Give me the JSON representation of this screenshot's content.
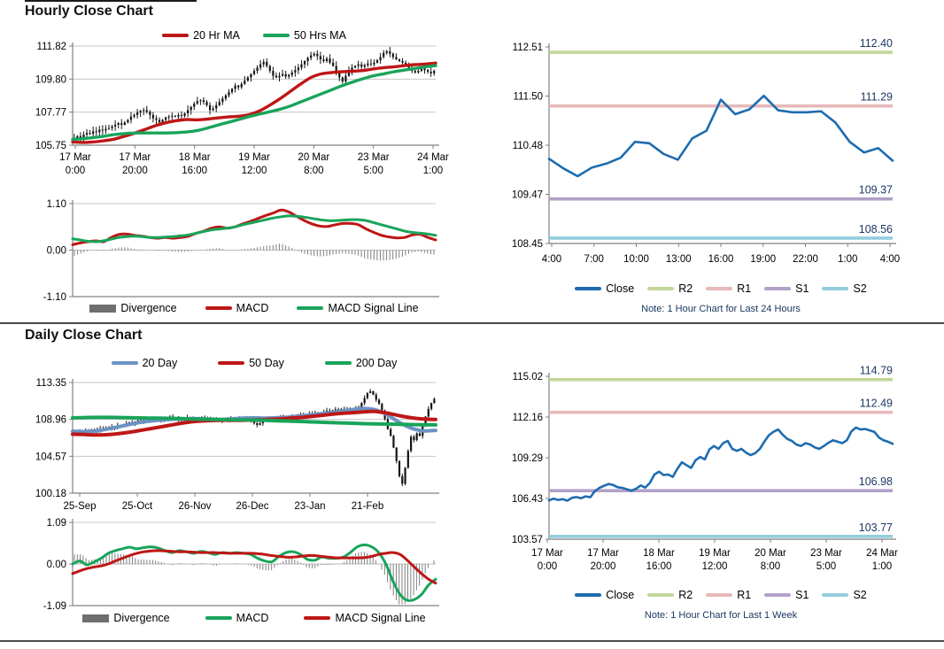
{
  "sections": {
    "hourly": {
      "title": "Hourly Close Chart"
    },
    "daily": {
      "title": "Daily Close Chart"
    }
  },
  "colors": {
    "ma_red": "#BE1616",
    "ma_green": "#18A45A",
    "ma_blue": "#6C92C4",
    "close_blue": "#1E6CB0",
    "r2_olive": "#C3D69B",
    "r1_pink": "#E6B9B8",
    "s1_purple": "#B2A1C7",
    "s2_cyan": "#93CDDD",
    "divergence_gray": "#6E6E6E",
    "candle_black": "#141414",
    "grid_gray": "#C6C6C6",
    "axis_gray": "#808080",
    "level_label_navy": "#1F3864",
    "note_navy": "#17365D"
  },
  "chart_data": [
    {
      "id": "hourly-price",
      "type": "candlestick",
      "title": "Hourly Close Chart",
      "ylim": [
        105.75,
        111.82
      ],
      "y_ticks": [
        "111.82",
        "109.80",
        "107.77",
        "105.75"
      ],
      "x_labels": [
        [
          "17 Mar",
          "0:00"
        ],
        [
          "17 Mar",
          "20:00"
        ],
        [
          "18 Mar",
          "16:00"
        ],
        [
          "19 Mar",
          "12:00"
        ],
        [
          "20 Mar",
          "8:00"
        ],
        [
          "23 Mar",
          "5:00"
        ],
        [
          "24 Mar",
          "1:00"
        ]
      ],
      "grid": true,
      "legend": [
        {
          "label": "20 Hr MA",
          "color": "#BE1616",
          "shape": "line"
        },
        {
          "label": "50 Hrs MA",
          "color": "#18A45A",
          "shape": "line"
        }
      ],
      "close": [
        106.2,
        106.3,
        106.15,
        106.4,
        106.5,
        106.45,
        106.6,
        106.55,
        106.7,
        106.65,
        106.75,
        106.8,
        106.9,
        107.0,
        107.1,
        107.0,
        107.15,
        107.3,
        107.5,
        107.6,
        107.75,
        107.85,
        107.9,
        107.8,
        107.6,
        107.4,
        107.3,
        107.15,
        107.3,
        107.45,
        107.5,
        107.55,
        107.5,
        107.6,
        107.55,
        107.7,
        107.9,
        108.1,
        108.3,
        108.45,
        108.5,
        108.4,
        108.2,
        107.9,
        108.0,
        108.2,
        108.4,
        108.6,
        108.8,
        109.0,
        109.2,
        109.4,
        109.3,
        109.5,
        109.7,
        109.9,
        110.1,
        110.3,
        110.5,
        110.7,
        110.85,
        110.6,
        110.3,
        110.0,
        109.9,
        110.0,
        110.1,
        109.95,
        110.05,
        110.2,
        110.35,
        110.5,
        110.7,
        110.9,
        111.1,
        111.25,
        111.35,
        111.2,
        111.0,
        110.9,
        111.05,
        110.8,
        110.6,
        110.2,
        109.9,
        109.65,
        110.0,
        110.3,
        110.5,
        110.6,
        110.7,
        110.55,
        110.65,
        110.75,
        110.7,
        110.8,
        110.95,
        111.15,
        111.4,
        111.5,
        111.35,
        111.15,
        111.0,
        110.9,
        110.8,
        110.7,
        110.5,
        110.3,
        110.2,
        110.3,
        110.45,
        110.35,
        110.25,
        110.15,
        110.3
      ],
      "ma_series": [
        {
          "name": "20 Hr MA",
          "color": "#BE1616",
          "points": [
            105.95,
            105.92,
            105.95,
            106.02,
            106.12,
            106.3,
            106.5,
            106.72,
            106.95,
            107.12,
            107.25,
            107.32,
            107.3,
            107.35,
            107.42,
            107.48,
            107.52,
            107.62,
            107.85,
            108.2,
            108.6,
            109.05,
            109.5,
            109.9,
            110.12,
            110.2,
            110.25,
            110.28,
            110.32,
            110.42,
            110.5,
            110.55,
            110.62,
            110.68,
            110.72,
            110.78
          ]
        },
        {
          "name": "50 Hrs MA",
          "color": "#18A45A",
          "points": [
            106.1,
            106.15,
            106.22,
            106.3,
            106.4,
            106.46,
            106.5,
            106.5,
            106.5,
            106.5,
            106.52,
            106.56,
            106.65,
            106.8,
            106.98,
            107.15,
            107.32,
            107.5,
            107.65,
            107.8,
            107.95,
            108.15,
            108.4,
            108.65,
            108.9,
            109.15,
            109.4,
            109.62,
            109.82,
            110.0,
            110.12,
            110.25,
            110.35,
            110.45,
            110.55,
            110.62
          ]
        }
      ]
    },
    {
      "id": "hourly-macd",
      "type": "macd",
      "ylim": [
        -1.1,
        1.1
      ],
      "y_ticks": [
        "1.10",
        "0.00",
        "-1.10"
      ],
      "legend": [
        {
          "label": "Divergence",
          "color": "#6E6E6E",
          "shape": "bar"
        },
        {
          "label": "MACD",
          "color": "#BE1616",
          "shape": "line"
        },
        {
          "label": "MACD Signal Line",
          "color": "#18A45A",
          "shape": "line"
        }
      ],
      "macd_color": "#BE1616",
      "signal_color": "#18A45A",
      "macd": [
        0.13,
        0.17,
        0.2,
        0.22,
        0.2,
        0.3,
        0.37,
        0.38,
        0.35,
        0.33,
        0.3,
        0.28,
        0.3,
        0.28,
        0.3,
        0.33,
        0.4,
        0.45,
        0.52,
        0.55,
        0.52,
        0.55,
        0.62,
        0.68,
        0.75,
        0.82,
        0.88,
        0.95,
        0.9,
        0.8,
        0.7,
        0.62,
        0.57,
        0.56,
        0.6,
        0.63,
        0.63,
        0.6,
        0.5,
        0.42,
        0.35,
        0.31,
        0.29,
        0.3,
        0.36,
        0.37,
        0.3,
        0.24
      ],
      "signal": [
        0.27,
        0.24,
        0.21,
        0.2,
        0.22,
        0.26,
        0.3,
        0.32,
        0.33,
        0.32,
        0.3,
        0.3,
        0.31,
        0.32,
        0.34,
        0.36,
        0.4,
        0.44,
        0.48,
        0.5,
        0.52,
        0.55,
        0.6,
        0.64,
        0.68,
        0.72,
        0.76,
        0.79,
        0.81,
        0.8,
        0.78,
        0.75,
        0.72,
        0.7,
        0.7,
        0.71,
        0.72,
        0.72,
        0.7,
        0.65,
        0.6,
        0.55,
        0.5,
        0.45,
        0.42,
        0.4,
        0.38,
        0.35
      ]
    },
    {
      "id": "pivot-24h",
      "type": "pivot",
      "ylim": [
        108.45,
        112.51
      ],
      "y_ticks": [
        "112.51",
        "111.50",
        "110.48",
        "109.47",
        "108.45"
      ],
      "x_labels": [
        "4:00",
        "7:00",
        "10:00",
        "13:00",
        "16:00",
        "19:00",
        "22:00",
        "1:00",
        "4:00"
      ],
      "levels": [
        {
          "name": "R2",
          "value": 112.4,
          "label": "112.40",
          "color": "#C3D69B"
        },
        {
          "name": "R1",
          "value": 111.29,
          "label": "111.29",
          "color": "#E6B9B8"
        },
        {
          "name": "S1",
          "value": 109.37,
          "label": "109.37",
          "color": "#B2A1C7"
        },
        {
          "name": "S2",
          "value": 108.56,
          "label": "108.56",
          "color": "#93CDDD"
        }
      ],
      "close": [
        110.2,
        110.0,
        109.84,
        110.02,
        110.1,
        110.22,
        110.55,
        110.52,
        110.3,
        110.18,
        110.62,
        110.78,
        111.42,
        111.12,
        111.22,
        111.5,
        111.2,
        111.16,
        111.16,
        111.18,
        110.95,
        110.55,
        110.33,
        110.42,
        110.16
      ],
      "legend": [
        {
          "label": "Close",
          "color": "#1E6CB0",
          "shape": "line"
        },
        {
          "label": "R2",
          "color": "#C3D69B",
          "shape": "line"
        },
        {
          "label": "R1",
          "color": "#E6B9B8",
          "shape": "line"
        },
        {
          "label": "S1",
          "color": "#B2A1C7",
          "shape": "line"
        },
        {
          "label": "S2",
          "color": "#93CDDD",
          "shape": "line"
        }
      ],
      "note": "Note: 1 Hour Chart for Last 24 Hours"
    },
    {
      "id": "daily-price",
      "type": "candlestick",
      "title": "Daily Close Chart",
      "ylim": [
        100.18,
        113.35
      ],
      "y_ticks": [
        "113.35",
        "108.96",
        "104.57",
        "100.18"
      ],
      "x_labels": [
        [
          "25-Sep"
        ],
        [
          "25-Oct"
        ],
        [
          "26-Nov"
        ],
        [
          "26-Dec"
        ],
        [
          "23-Jan"
        ],
        [
          "21-Feb"
        ]
      ],
      "grid": true,
      "legend": [
        {
          "label": "20 Day",
          "color": "#6C92C4",
          "shape": "line"
        },
        {
          "label": "50 Day",
          "color": "#BE1616",
          "shape": "line"
        },
        {
          "label": "200 Day",
          "color": "#18A45A",
          "shape": "line"
        }
      ],
      "close": [
        107.35,
        107.5,
        107.3,
        107.45,
        107.6,
        107.5,
        107.4,
        107.55,
        107.7,
        107.85,
        107.75,
        107.9,
        108.05,
        107.95,
        108.1,
        108.25,
        108.15,
        108.3,
        108.45,
        108.6,
        108.5,
        108.7,
        108.85,
        108.75,
        108.9,
        109.05,
        108.95,
        109.1,
        109.2,
        109.05,
        108.9,
        109.0,
        109.15,
        109.3,
        109.15,
        109.0,
        108.85,
        109.0,
        109.1,
        109.2,
        109.1,
        109.0,
        108.9,
        109.05,
        109.15,
        109.05,
        108.95,
        109.1,
        109.0,
        108.9,
        108.8,
        108.95,
        109.1,
        109.0,
        108.9,
        109.05,
        109.15,
        109.05,
        108.95,
        109.05,
        108.9,
        108.7,
        108.5,
        108.3,
        108.5,
        108.7,
        108.9,
        109.1,
        109.0,
        108.9,
        109.05,
        109.2,
        109.1,
        109.0,
        109.15,
        109.3,
        109.2,
        109.35,
        109.45,
        109.35,
        109.5,
        109.6,
        109.5,
        109.65,
        109.8,
        109.7,
        109.85,
        110.0,
        109.9,
        110.05,
        110.15,
        110.05,
        110.2,
        110.1,
        110.0,
        110.15,
        110.25,
        110.15,
        110.4,
        110.9,
        111.5,
        112.1,
        112.3,
        111.9,
        111.3,
        110.8,
        110.0,
        109.0,
        107.8,
        107.0,
        105.6,
        104.0,
        102.2,
        101.3,
        103.2,
        105.2,
        106.9,
        106.5,
        107.3,
        107.0,
        108.2,
        109.3,
        110.2,
        110.9,
        111.4
      ],
      "ma_series": [
        {
          "name": "20 Day",
          "color": "#6C92C4",
          "points": [
            107.55,
            107.5,
            107.6,
            107.85,
            108.15,
            108.45,
            108.7,
            108.85,
            108.95,
            109.0,
            109.05,
            109.0,
            108.95,
            109.0,
            109.1,
            109.15,
            109.1,
            109.15,
            109.25,
            109.4,
            109.55,
            109.7,
            109.9,
            110.1,
            110.25,
            110.1,
            109.5,
            108.6,
            107.9,
            107.6,
            107.65
          ]
        },
        {
          "name": "50 Day",
          "color": "#BE1616",
          "points": [
            107.2,
            107.15,
            107.1,
            107.15,
            107.3,
            107.5,
            107.75,
            108.0,
            108.25,
            108.5,
            108.7,
            108.8,
            108.85,
            108.85,
            108.85,
            108.9,
            108.95,
            109.0,
            109.1,
            109.2,
            109.35,
            109.5,
            109.65,
            109.75,
            109.85,
            109.9,
            109.7,
            109.4,
            109.15,
            109.0,
            108.95
          ]
        },
        {
          "name": "200 Day",
          "color": "#18A45A",
          "points": [
            109.15,
            109.18,
            109.2,
            109.2,
            109.18,
            109.15,
            109.12,
            109.1,
            109.08,
            109.05,
            109.0,
            108.98,
            108.95,
            108.92,
            108.9,
            108.88,
            108.85,
            108.8,
            108.75,
            108.7,
            108.65,
            108.6,
            108.55,
            108.5,
            108.45,
            108.42,
            108.4,
            108.38,
            108.35,
            108.32,
            108.3
          ]
        }
      ]
    },
    {
      "id": "daily-macd",
      "type": "macd",
      "ylim": [
        -1.09,
        1.09
      ],
      "y_ticks": [
        "1.09",
        "0.00",
        "-1.09"
      ],
      "legend": [
        {
          "label": "Divergence",
          "color": "#6E6E6E",
          "shape": "bar"
        },
        {
          "label": "MACD",
          "color": "#18A45A",
          "shape": "line"
        },
        {
          "label": "MACD Signal Line",
          "color": "#BE1616",
          "shape": "line"
        }
      ],
      "macd_color": "#18A45A",
      "signal_color": "#BE1616",
      "macd": [
        0.0,
        0.08,
        -0.02,
        0.05,
        0.15,
        0.28,
        0.35,
        0.4,
        0.44,
        0.4,
        0.43,
        0.45,
        0.42,
        0.35,
        0.3,
        0.35,
        0.32,
        0.28,
        0.33,
        0.3,
        0.25,
        0.3,
        0.28,
        0.3,
        0.28,
        0.25,
        0.15,
        0.08,
        0.06,
        0.2,
        0.3,
        0.32,
        0.25,
        0.12,
        0.1,
        0.18,
        0.15,
        0.15,
        0.18,
        0.3,
        0.45,
        0.5,
        0.45,
        0.3,
        0.0,
        -0.45,
        -0.8,
        -0.95,
        -0.93,
        -0.8,
        -0.55,
        -0.4
      ],
      "signal": [
        -0.25,
        -0.18,
        -0.12,
        -0.08,
        -0.05,
        0.0,
        0.08,
        0.15,
        0.22,
        0.28,
        0.32,
        0.34,
        0.35,
        0.34,
        0.33,
        0.32,
        0.32,
        0.31,
        0.3,
        0.3,
        0.3,
        0.29,
        0.28,
        0.28,
        0.28,
        0.28,
        0.27,
        0.25,
        0.22,
        0.2,
        0.18,
        0.18,
        0.2,
        0.22,
        0.22,
        0.2,
        0.18,
        0.16,
        0.16,
        0.16,
        0.16,
        0.17,
        0.2,
        0.25,
        0.28,
        0.3,
        0.25,
        0.1,
        -0.08,
        -0.25,
        -0.4,
        -0.5
      ]
    },
    {
      "id": "pivot-1w",
      "type": "pivot",
      "ylim": [
        103.57,
        115.02
      ],
      "y_ticks": [
        "115.02",
        "112.16",
        "109.29",
        "106.43",
        "103.57"
      ],
      "x_labels_2line": [
        [
          "17 Mar",
          "0:00"
        ],
        [
          "17 Mar",
          "20:00"
        ],
        [
          "18 Mar",
          "16:00"
        ],
        [
          "19 Mar",
          "12:00"
        ],
        [
          "20 Mar",
          "8:00"
        ],
        [
          "23 Mar",
          "5:00"
        ],
        [
          "24 Mar",
          "1:00"
        ]
      ],
      "levels": [
        {
          "name": "R2",
          "value": 114.79,
          "label": "114.79",
          "color": "#C3D69B"
        },
        {
          "name": "R1",
          "value": 112.49,
          "label": "112.49",
          "color": "#E6B9B8"
        },
        {
          "name": "S1",
          "value": 106.98,
          "label": "106.98",
          "color": "#B2A1C7"
        },
        {
          "name": "S2",
          "value": 103.77,
          "label": "103.77",
          "color": "#93CDDD"
        }
      ],
      "close": [
        106.3,
        106.42,
        106.33,
        106.38,
        106.28,
        106.48,
        106.53,
        106.45,
        106.58,
        106.52,
        106.95,
        107.18,
        107.32,
        107.45,
        107.38,
        107.22,
        107.18,
        107.08,
        106.98,
        107.12,
        107.35,
        107.2,
        107.52,
        108.12,
        108.32,
        108.08,
        108.12,
        107.95,
        108.52,
        108.98,
        108.78,
        108.58,
        109.12,
        109.35,
        109.18,
        109.88,
        110.12,
        109.92,
        110.32,
        110.48,
        109.92,
        109.78,
        109.92,
        109.65,
        109.48,
        109.62,
        109.92,
        110.42,
        110.88,
        111.12,
        111.28,
        110.92,
        110.62,
        110.48,
        110.22,
        110.12,
        110.32,
        110.22,
        110.02,
        109.92,
        110.12,
        110.35,
        110.52,
        110.42,
        110.32,
        110.52,
        111.15,
        111.42,
        111.28,
        111.32,
        111.22,
        111.12,
        110.72,
        110.52,
        110.42,
        110.28
      ],
      "legend": [
        {
          "label": "Close",
          "color": "#1E6CB0",
          "shape": "line"
        },
        {
          "label": "R2",
          "color": "#C3D69B",
          "shape": "line"
        },
        {
          "label": "R1",
          "color": "#E6B9B8",
          "shape": "line"
        },
        {
          "label": "S1",
          "color": "#B2A1C7",
          "shape": "line"
        },
        {
          "label": "S2",
          "color": "#93CDDD",
          "shape": "line"
        }
      ],
      "note": "Note: 1 Hour Chart for Last 1 Week"
    }
  ]
}
